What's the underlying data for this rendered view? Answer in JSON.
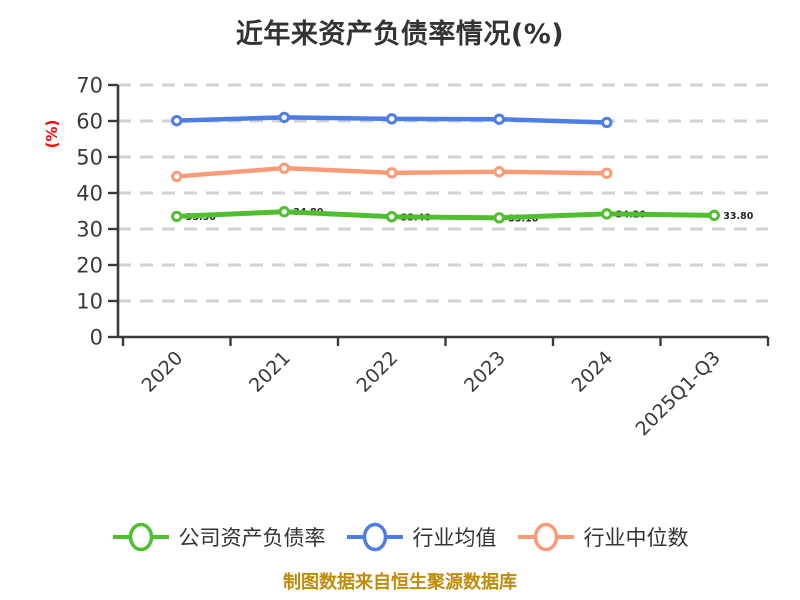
{
  "footer": "制图数据来自恒生聚源数据库",
  "colors": {
    "title": "#333333",
    "axis": "#3A3A3A",
    "grid": "#D2D2D2",
    "ylabel": "#FF0000",
    "footer": "#BE8C0A",
    "point_fill": "#FFFFFF",
    "point_label": "#252525"
  },
  "chart_data": {
    "type": "line",
    "title": "近年来资产负债率情况(%)",
    "categories": [
      "2020",
      "2021",
      "2022",
      "2023",
      "2024",
      "2025Q1-Q3"
    ],
    "xlabel": "",
    "ylabel": "(%)",
    "ylim": [
      0,
      70
    ],
    "yticks": [
      0,
      10,
      20,
      30,
      40,
      50,
      60,
      70
    ],
    "grid": "horizontal-dashed",
    "legend_position": "bottom",
    "series": [
      {
        "name": "公司资产负债率",
        "color": "#4FBE2F",
        "marker": "circle-white-fill",
        "show_point_labels": true,
        "values": [
          33.5,
          34.8,
          33.4,
          33.1,
          34.2,
          33.8
        ]
      },
      {
        "name": "行业均值",
        "color": "#4E7DE8",
        "marker": "circle-white-fill",
        "show_point_labels": false,
        "values": [
          60.1,
          61.0,
          60.6,
          60.5,
          59.6
        ]
      },
      {
        "name": "行业中位数",
        "color": "#F99B77",
        "marker": "circle-white-fill",
        "show_point_labels": false,
        "values": [
          44.6,
          46.9,
          45.6,
          45.9,
          45.5
        ]
      }
    ]
  }
}
